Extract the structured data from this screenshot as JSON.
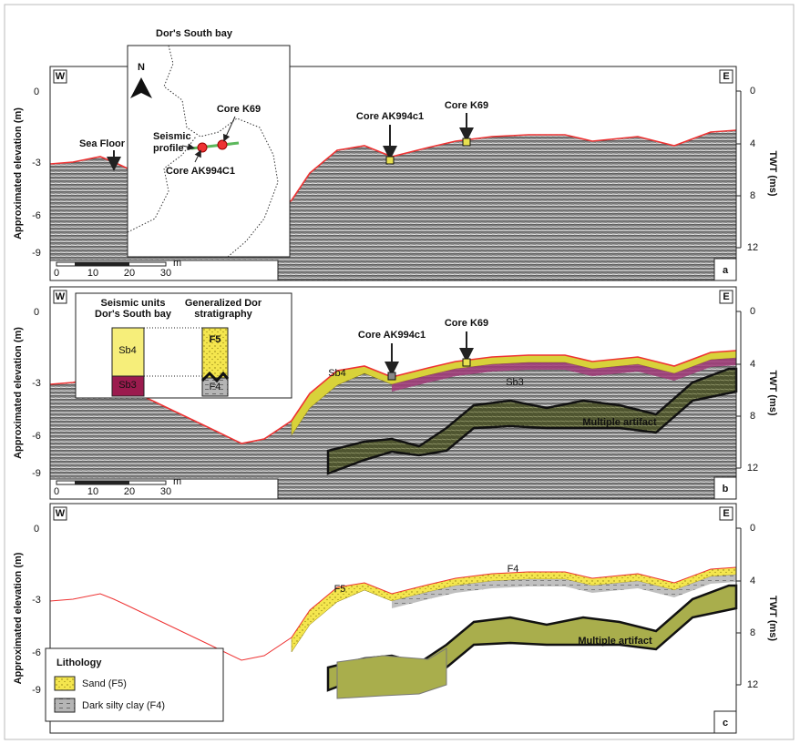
{
  "inset_map": {
    "title": "Dor's South bay",
    "north": "N",
    "core_k69": "Core K69",
    "seismic_line1": "Seismic",
    "seismic_line2": "profile",
    "core_ak": "Core AK994C1"
  },
  "panels": [
    {
      "letter": "a",
      "west": "W",
      "east": "E",
      "y_axis_label": "Approximated elevation (m)",
      "y_ticks": [
        0,
        -3,
        -6,
        -9
      ],
      "y2_axis_label": "TWT (ms)",
      "y2_ticks": [
        0,
        4,
        8,
        12
      ],
      "scale_ticks": [
        0,
        10,
        20,
        30
      ],
      "scale_unit": "m",
      "annotations": [
        "Sea Floor",
        "Core AK994c1",
        "Core K69"
      ]
    },
    {
      "letter": "b",
      "west": "W",
      "east": "E",
      "y_axis_label": "Approximated elevation (m)",
      "y_ticks": [
        0,
        -3,
        -6,
        -9
      ],
      "y2_axis_label": "TWT (ms)",
      "y2_ticks": [
        0,
        4,
        8,
        12
      ],
      "scale_ticks": [
        0,
        10,
        20,
        30
      ],
      "scale_unit": "m",
      "annotations": [
        "Core AK994c1",
        "Core K69",
        "Sb4",
        "Sb3",
        "Multiple artifact"
      ]
    },
    {
      "letter": "c",
      "west": "W",
      "east": "E",
      "y_axis_label": "Approximated elevation (m)",
      "y_ticks": [
        0,
        -3,
        -6,
        -9
      ],
      "y2_axis_label": "TWT (ms)",
      "y2_ticks": [
        0,
        4,
        8,
        12
      ],
      "annotations": [
        "F5",
        "F4",
        "Multiple artifact"
      ]
    }
  ],
  "strat_inset": {
    "col1_line1": "Seismic units",
    "col1_line2": "Dor's South bay",
    "col2_line1": "Generalized Dor",
    "col2_line2": "stratigraphy",
    "sb4": "Sb4",
    "sb3": "Sb3",
    "f5": "F5",
    "f4": "F4"
  },
  "legend": {
    "title": "Lithology",
    "sand": "Sand (F5)",
    "clay": "Dark silty clay (F4)"
  }
}
